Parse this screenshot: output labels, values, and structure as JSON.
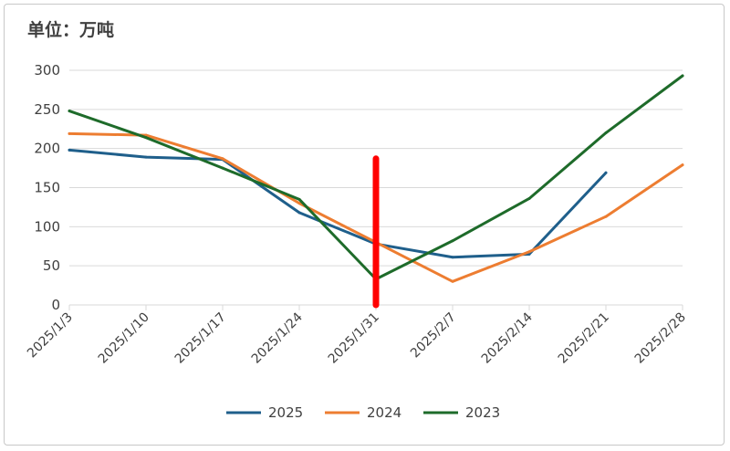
{
  "unit_label": "单位：万吨",
  "chart_data": {
    "type": "line",
    "title": "",
    "xlabel": "",
    "ylabel": "",
    "unit": "单位：万吨",
    "categories": [
      "2025/1/3",
      "2025/1/10",
      "2025/1/17",
      "2025/1/24",
      "2025/1/31",
      "2025/2/7",
      "2025/2/14",
      "2025/2/21",
      "2025/2/28"
    ],
    "ylim": [
      0,
      300
    ],
    "yticks": [
      0,
      50,
      100,
      150,
      200,
      250,
      300
    ],
    "grid": true,
    "legend_position": "bottom",
    "series": [
      {
        "name": "2025",
        "color": "#1f5f8b",
        "values": [
          198,
          189,
          186,
          118,
          78,
          61,
          65,
          169,
          null
        ]
      },
      {
        "name": "2024",
        "color": "#ed7d31",
        "values": [
          219,
          217,
          187,
          130,
          80,
          30,
          68,
          113,
          179
        ]
      },
      {
        "name": "2023",
        "color": "#1e6b2a",
        "values": [
          248,
          214,
          175,
          135,
          33,
          82,
          136,
          220,
          293
        ]
      }
    ],
    "annotations": [
      {
        "type": "vertical-marker",
        "x": "2025/1/31",
        "color": "#ff0000",
        "y_from": 0,
        "y_to": 187
      }
    ]
  }
}
